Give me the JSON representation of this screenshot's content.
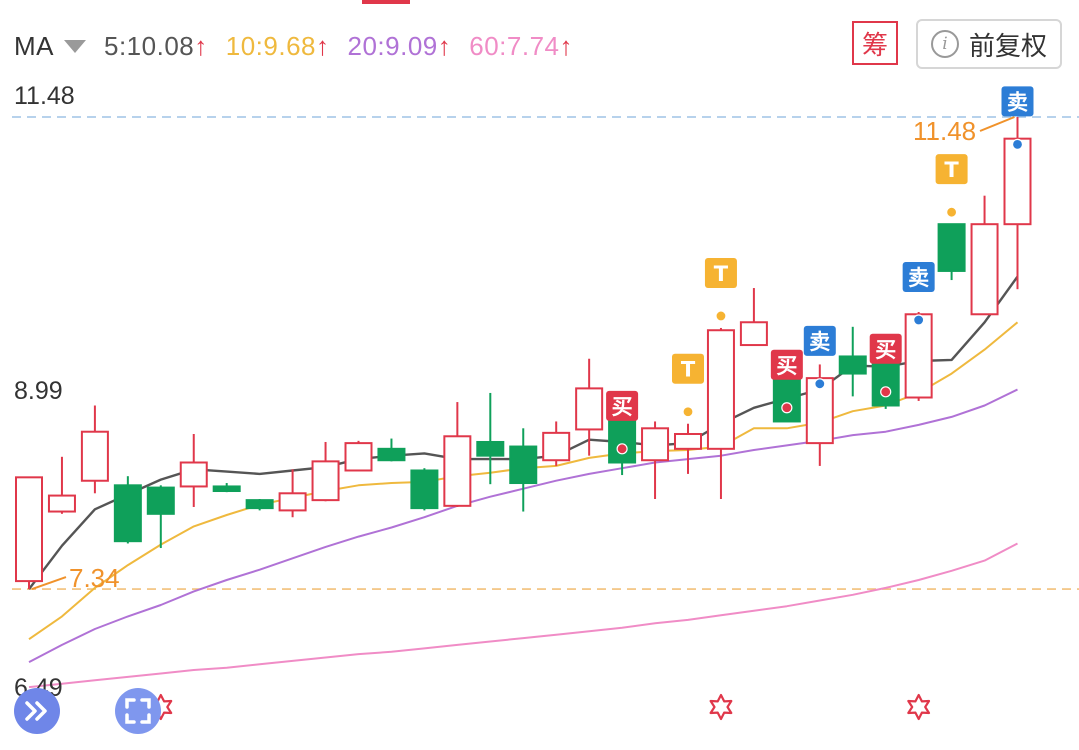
{
  "legend": {
    "name": "MA",
    "ma5": "5:10.08",
    "ma10": "10:9.68",
    "ma20": "20:9.09",
    "ma60": "60:7.74",
    "arrow": "↑"
  },
  "buttons": {
    "chou": "筹",
    "fuquan": "前复权",
    "info_glyph": "i"
  },
  "price_labels": {
    "top": "11.48",
    "mid": "8.99",
    "bottom": "6.49"
  },
  "colors": {
    "up": "#e0374a",
    "down": "#0fa05a",
    "ma5": "#555555",
    "ma10": "#efb93e",
    "ma20": "#b072d6",
    "ma60": "#f08cc6",
    "high_line": "#9fc4e6",
    "low_line": "#f2c07a",
    "annot": "#f0922b",
    "buy": "#e0374a",
    "sell": "#2c7dd6",
    "t": "#f6b332"
  },
  "chart_data": {
    "type": "candlestick",
    "y_axis": {
      "labels": [
        11.48,
        8.99,
        6.49
      ],
      "range": [
        6.49,
        11.48
      ]
    },
    "dashed_lines": [
      {
        "role": "period-high",
        "value": 11.48
      },
      {
        "role": "period-low",
        "value": 7.34
      }
    ],
    "annotations": [
      {
        "text": "11.48",
        "candle": 30
      },
      {
        "text": "7.34",
        "candle": 0
      }
    ],
    "candles": [
      {
        "o": 7.41,
        "c": 8.32,
        "h": 8.32,
        "l": 7.34
      },
      {
        "o": 8.02,
        "c": 8.16,
        "h": 8.5,
        "l": 8.0
      },
      {
        "o": 8.29,
        "c": 8.72,
        "h": 8.95,
        "l": 8.18
      },
      {
        "o": 8.25,
        "c": 7.76,
        "h": 8.33,
        "l": 7.74
      },
      {
        "o": 8.23,
        "c": 8.0,
        "h": 8.25,
        "l": 7.7
      },
      {
        "o": 8.24,
        "c": 8.45,
        "h": 8.7,
        "l": 8.06
      },
      {
        "o": 8.24,
        "c": 8.2,
        "h": 8.27,
        "l": 8.19
      },
      {
        "o": 8.12,
        "c": 8.05,
        "h": 8.13,
        "l": 8.03
      },
      {
        "o": 8.03,
        "c": 8.18,
        "h": 8.39,
        "l": 7.97
      },
      {
        "o": 8.12,
        "c": 8.46,
        "h": 8.63,
        "l": 8.11
      },
      {
        "o": 8.38,
        "c": 8.62,
        "h": 8.64,
        "l": 8.38
      },
      {
        "o": 8.57,
        "c": 8.47,
        "h": 8.66,
        "l": 8.46
      },
      {
        "o": 8.38,
        "c": 8.05,
        "h": 8.4,
        "l": 8.03
      },
      {
        "o": 8.07,
        "c": 8.68,
        "h": 8.98,
        "l": 8.06
      },
      {
        "o": 8.63,
        "c": 8.51,
        "h": 9.06,
        "l": 8.26
      },
      {
        "o": 8.59,
        "c": 8.27,
        "h": 8.75,
        "l": 8.02
      },
      {
        "o": 8.47,
        "c": 8.71,
        "h": 8.81,
        "l": 8.42
      },
      {
        "o": 8.74,
        "c": 9.1,
        "h": 9.36,
        "l": 8.51
      },
      {
        "o": 9.05,
        "c": 8.45,
        "h": 9.07,
        "l": 8.34
      },
      {
        "o": 8.47,
        "c": 8.75,
        "h": 8.81,
        "l": 8.13
      },
      {
        "o": 8.57,
        "c": 8.7,
        "h": 8.79,
        "l": 8.35
      },
      {
        "o": 8.57,
        "c": 9.61,
        "h": 9.63,
        "l": 8.13
      },
      {
        "o": 9.48,
        "c": 9.68,
        "h": 9.98,
        "l": 9.48
      },
      {
        "o": 9.32,
        "c": 8.81,
        "h": 9.32,
        "l": 8.81
      },
      {
        "o": 8.62,
        "c": 9.19,
        "h": 9.31,
        "l": 8.42
      },
      {
        "o": 9.38,
        "c": 9.23,
        "h": 9.64,
        "l": 9.03
      },
      {
        "o": 9.31,
        "c": 8.95,
        "h": 9.35,
        "l": 8.92
      },
      {
        "o": 9.02,
        "c": 9.75,
        "h": 9.77,
        "l": 8.99
      },
      {
        "o": 10.54,
        "c": 10.13,
        "h": 10.54,
        "l": 10.05
      },
      {
        "o": 9.75,
        "c": 10.54,
        "h": 10.79,
        "l": 9.75
      },
      {
        "o": 10.54,
        "c": 11.29,
        "h": 11.48,
        "l": 9.97
      }
    ],
    "series": [
      {
        "name": "5",
        "values": [
          7.34,
          7.72,
          8.04,
          8.17,
          8.3,
          8.39,
          8.37,
          8.35,
          8.38,
          8.41,
          8.48,
          8.51,
          8.53,
          8.48,
          8.48,
          8.48,
          8.51,
          8.65,
          8.63,
          8.6,
          8.62,
          8.79,
          8.93,
          9.01,
          9.09,
          9.3,
          9.29,
          9.34,
          9.35,
          9.68,
          10.08
        ]
      },
      {
        "name": "10",
        "values": [
          6.9,
          7.1,
          7.35,
          7.55,
          7.73,
          7.89,
          7.99,
          8.08,
          8.14,
          8.2,
          8.25,
          8.27,
          8.28,
          8.33,
          8.36,
          8.4,
          8.42,
          8.49,
          8.53,
          8.55,
          8.56,
          8.59,
          8.75,
          8.75,
          8.8,
          8.9,
          8.95,
          9.06,
          9.23,
          9.44,
          9.68
        ]
      },
      {
        "name": "20",
        "values": [
          6.7,
          6.85,
          6.99,
          7.1,
          7.2,
          7.32,
          7.42,
          7.51,
          7.61,
          7.71,
          7.8,
          7.88,
          7.97,
          8.07,
          8.15,
          8.22,
          8.29,
          8.35,
          8.4,
          8.45,
          8.48,
          8.51,
          8.56,
          8.6,
          8.64,
          8.69,
          8.72,
          8.78,
          8.85,
          8.95,
          9.09
        ]
      },
      {
        "name": "60",
        "values": [
          6.48,
          6.51,
          6.54,
          6.57,
          6.6,
          6.63,
          6.65,
          6.68,
          6.71,
          6.74,
          6.77,
          6.79,
          6.82,
          6.85,
          6.88,
          6.91,
          6.94,
          6.97,
          7.0,
          7.04,
          7.07,
          7.11,
          7.15,
          7.19,
          7.24,
          7.29,
          7.35,
          7.42,
          7.5,
          7.59,
          7.74
        ]
      }
    ],
    "signals": [
      {
        "type": "buy",
        "text": "买",
        "candle": 18
      },
      {
        "type": "t",
        "text": "T",
        "candle": 20
      },
      {
        "type": "t",
        "text": "T",
        "candle": 21
      },
      {
        "type": "buy",
        "text": "买",
        "candle": 23
      },
      {
        "type": "sell",
        "text": "卖",
        "candle": 24
      },
      {
        "type": "buy",
        "text": "买",
        "candle": 26
      },
      {
        "type": "sell",
        "text": "卖",
        "candle": 27
      },
      {
        "type": "t",
        "text": "T",
        "candle": 28
      },
      {
        "type": "sell",
        "text": "卖",
        "candle": 30
      }
    ],
    "star_markers": [
      4,
      21,
      27
    ]
  }
}
